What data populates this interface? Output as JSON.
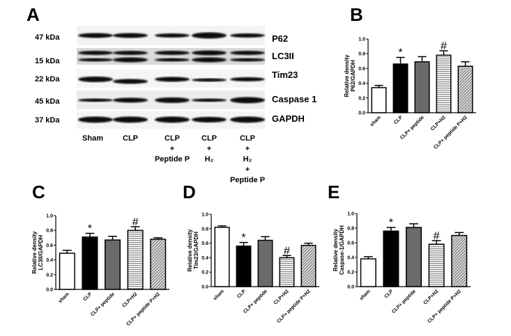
{
  "panel_a": {
    "letter": "A",
    "kda_labels": [
      "47 kDa",
      "15 kDa",
      "22 kDa",
      "45 kDa",
      "37 kDa"
    ],
    "protein_labels": [
      "P62",
      "LC3II",
      "Tim23",
      "Caspase 1",
      "GAPDH"
    ],
    "lane_labels": [
      [
        "Sham"
      ],
      [
        "CLP"
      ],
      [
        "CLP",
        "+",
        "Peptide P"
      ],
      [
        "CLP",
        "+",
        "H₂"
      ],
      [
        "CLP",
        "+",
        "H₂",
        "+",
        "Peptide P"
      ]
    ]
  },
  "chart_data": [
    {
      "letter": "B",
      "type": "bar",
      "ylabel": [
        "Relative density",
        "P62/GAPDH"
      ],
      "categories": [
        "sham",
        "CLP",
        "CLP+ peptide",
        "CLP+H2",
        "CLP+ peptide P+H2"
      ],
      "values": [
        0.34,
        0.66,
        0.69,
        0.78,
        0.63
      ],
      "errors": [
        0.03,
        0.09,
        0.07,
        0.06,
        0.06
      ],
      "significance": [
        "",
        "*",
        "",
        "#",
        ""
      ],
      "ylim": [
        0,
        1.0
      ],
      "yticks": [
        "0.0",
        "0.2",
        "0.4",
        "0.6",
        "0.8",
        "1.0"
      ]
    },
    {
      "letter": "C",
      "type": "bar",
      "ylabel": [
        "Relative density",
        "LC3II/GAPDH"
      ],
      "categories": [
        "sham",
        "CLP",
        "CLP+ peptide",
        "CLP+H2",
        "CLP+ peptide P+H2"
      ],
      "values": [
        0.49,
        0.71,
        0.67,
        0.8,
        0.68
      ],
      "errors": [
        0.04,
        0.05,
        0.05,
        0.05,
        0.02
      ],
      "significance": [
        "",
        "*",
        "",
        "#",
        ""
      ],
      "ylim": [
        0,
        1.0
      ],
      "yticks": [
        "0.0",
        "0.2",
        "0.4",
        "0.6",
        "0.8",
        "1.0"
      ]
    },
    {
      "letter": "D",
      "type": "bar",
      "ylabel": [
        "Relative density",
        "Tim23/GAPDH"
      ],
      "categories": [
        "sham",
        "CLP",
        "CLP+ peptide",
        "CLP+H2",
        "CLP+ peptide P+H2"
      ],
      "values": [
        0.82,
        0.56,
        0.64,
        0.4,
        0.57
      ],
      "errors": [
        0.02,
        0.05,
        0.05,
        0.03,
        0.03
      ],
      "significance": [
        "",
        "*",
        "",
        "#",
        ""
      ],
      "ylim": [
        0,
        1.0
      ],
      "yticks": [
        "0.0",
        "0.2",
        "0.4",
        "0.6",
        "0.8",
        "1.0"
      ]
    },
    {
      "letter": "E",
      "type": "bar",
      "ylabel": [
        "Relative density",
        "Caspase-1/GAPDH"
      ],
      "categories": [
        "sham",
        "CLP",
        "CLP+ peptide",
        "CLP+H2",
        "CLP+ peptide P+H2"
      ],
      "values": [
        0.38,
        0.76,
        0.81,
        0.58,
        0.7
      ],
      "errors": [
        0.03,
        0.05,
        0.05,
        0.05,
        0.04
      ],
      "significance": [
        "",
        "*",
        "",
        "#",
        ""
      ],
      "ylim": [
        0,
        1.0
      ],
      "yticks": [
        "0.0",
        "0.2",
        "0.4",
        "0.6",
        "0.8",
        "1.0"
      ]
    }
  ],
  "bar_fills": [
    "#ffffff",
    "#000000",
    "#6b6b6b",
    "horizontal-stripes",
    "diagonal-hatch"
  ]
}
